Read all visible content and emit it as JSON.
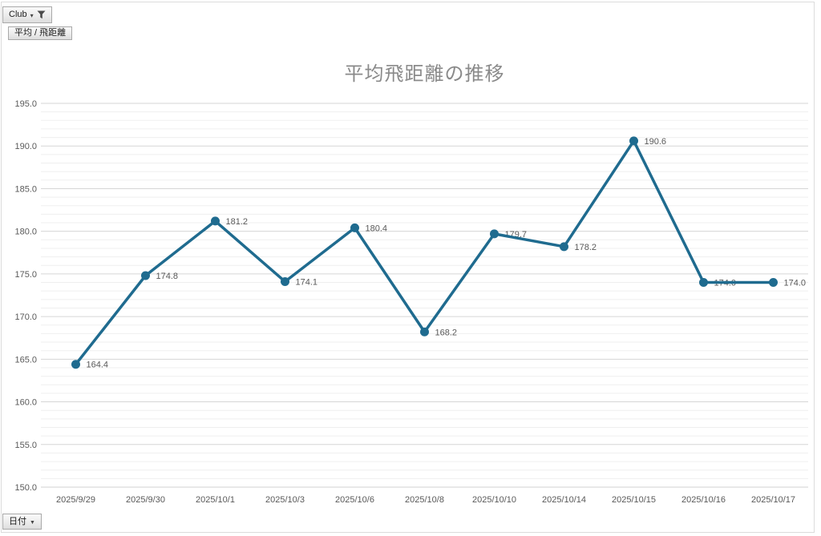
{
  "window": {
    "background": "#ffffff",
    "border_color": "#dcdcdc"
  },
  "pivot_buttons": {
    "filter_field": {
      "label": "Club",
      "icon": "filter-funnel-icon"
    },
    "value_field": {
      "label": "平均 / 飛距離"
    },
    "axis_field": {
      "label": "日付",
      "icon": "chevron-down-icon",
      "caret": "▼"
    }
  },
  "chart_data": {
    "type": "line",
    "title": "平均飛距離の推移",
    "categories": [
      "2025/9/29",
      "2025/9/30",
      "2025/10/1",
      "2025/10/3",
      "2025/10/6",
      "2025/10/8",
      "2025/10/10",
      "2025/10/14",
      "2025/10/15",
      "2025/10/16",
      "2025/10/17"
    ],
    "series": [
      {
        "name": "平均 / 飛距離",
        "values": [
          164.4,
          174.8,
          181.2,
          174.1,
          180.4,
          168.2,
          179.7,
          178.2,
          190.6,
          174.0,
          174.0
        ]
      }
    ],
    "data_labels": [
      "164.4",
      "174.8",
      "181.2",
      "174.1",
      "180.4",
      "168.2",
      "179.7",
      "178.2",
      "190.6",
      "174.0",
      "174.0"
    ],
    "xlabel": "",
    "ylabel": "",
    "ylim": [
      150.0,
      195.0
    ],
    "y_major_step": 5,
    "y_minor_step": 1,
    "y_tick_labels": [
      "195.0",
      "190.0",
      "185.0",
      "180.0",
      "175.0",
      "170.0",
      "165.0",
      "160.0",
      "155.0",
      "150.0"
    ],
    "grid": "major+minor horizontal",
    "legend": "none",
    "colors": {
      "line": "#1f6b8f",
      "marker": "#1f6b8f",
      "title": "#8a8a8a",
      "tick_label": "#595959",
      "data_label": "#595959",
      "major_grid": "#d6d6d6",
      "minor_grid": "#efefef",
      "axis_line": "#d0d0d0"
    }
  }
}
